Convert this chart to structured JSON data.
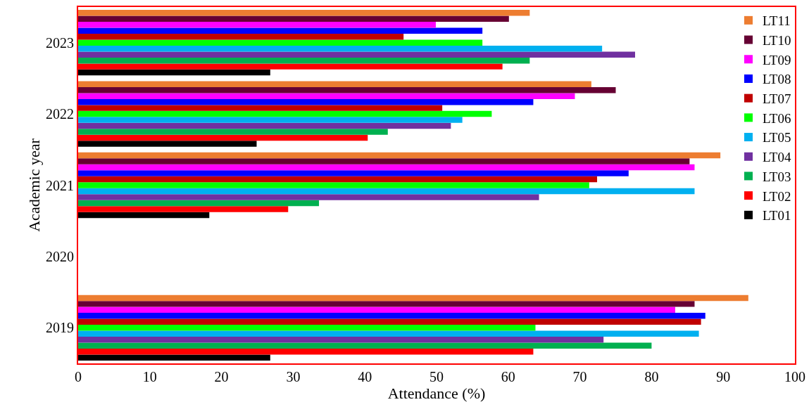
{
  "chart_data": {
    "type": "bar",
    "orientation": "horizontal",
    "xlabel": "Attendance (%)",
    "ylabel": "Academic year",
    "categories": [
      "2023",
      "2022",
      "2021",
      "2020",
      "2019"
    ],
    "xlim": [
      0,
      100
    ],
    "xticks": [
      0,
      10,
      20,
      30,
      40,
      50,
      60,
      70,
      80,
      90,
      100
    ],
    "grid": false,
    "legend": "top right",
    "series": [
      {
        "name": "LT01",
        "color": "#000000",
        "values": [
          26.8,
          24.9,
          18.3,
          null,
          26.8
        ]
      },
      {
        "name": "LT02",
        "color": "#ff0000",
        "values": [
          59.2,
          40.4,
          29.3,
          null,
          63.5
        ]
      },
      {
        "name": "LT03",
        "color": "#00b050",
        "values": [
          63.0,
          43.2,
          33.6,
          null,
          80.0
        ]
      },
      {
        "name": "LT04",
        "color": "#7030a0",
        "values": [
          77.7,
          52.0,
          64.3,
          null,
          73.3
        ]
      },
      {
        "name": "LT05",
        "color": "#00b0f0",
        "values": [
          73.1,
          53.6,
          86.0,
          null,
          86.6
        ]
      },
      {
        "name": "LT06",
        "color": "#00ff00",
        "values": [
          56.4,
          57.7,
          71.3,
          null,
          63.8
        ]
      },
      {
        "name": "LT07",
        "color": "#c00000",
        "values": [
          45.4,
          50.8,
          72.4,
          null,
          86.9
        ]
      },
      {
        "name": "LT08",
        "color": "#0000ff",
        "values": [
          56.4,
          63.5,
          76.8,
          null,
          87.5
        ]
      },
      {
        "name": "LT09",
        "color": "#ff00ff",
        "values": [
          49.9,
          69.3,
          86.0,
          null,
          83.3
        ]
      },
      {
        "name": "LT10",
        "color": "#660033",
        "values": [
          60.1,
          75.0,
          85.3,
          null,
          86.0
        ]
      },
      {
        "name": "LT11",
        "color": "#ed7d31",
        "values": [
          63.0,
          71.6,
          89.6,
          null,
          93.5
        ]
      }
    ]
  }
}
